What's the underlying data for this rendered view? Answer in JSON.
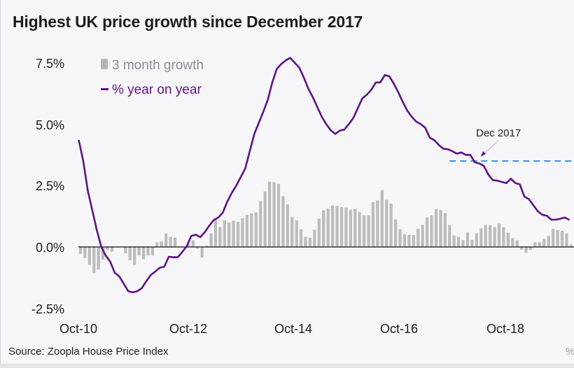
{
  "title": "Highest UK price growth since December 2017",
  "source": "Source: Zoopla House Price Index",
  "cut_off_text": "%",
  "colors": {
    "line": "#5e1283",
    "bars": "#bcbcbc",
    "reference": "#3a8fe3",
    "zero_line": "#333333"
  },
  "chart_data": {
    "type": "bar+line",
    "title": "Highest UK price growth since December 2017",
    "xlabel": "",
    "ylabel": "",
    "x_start": "Oct-10",
    "x_frequency": "monthly",
    "x_tick_labels": [
      "Oct-10",
      "Oct-12",
      "Oct-14",
      "Oct-16",
      "Oct-18"
    ],
    "y_tick_labels": [
      "7.5%",
      "5.0%",
      "2.5%",
      "0.0%",
      "-2.5%"
    ],
    "y_ticks": [
      7.5,
      5.0,
      2.5,
      0.0,
      -2.5
    ],
    "ylim": [
      -2.5,
      7.5
    ],
    "grid": false,
    "legend_position": "top-left",
    "series": [
      {
        "name": "3 month growth",
        "type": "bar",
        "values": [
          -0.28,
          -0.45,
          -0.73,
          -1.06,
          -0.92,
          -0.52,
          -0.13,
          -0.19,
          0,
          0,
          -0.26,
          -0.54,
          -0.73,
          -0.35,
          -0.5,
          -0.35,
          -0.35,
          0.19,
          0.22,
          0.55,
          0.41,
          0.38,
          0,
          0,
          0.12,
          0.27,
          -0.07,
          -0.43,
          0.05,
          0.55,
          1.12,
          0.82,
          1.09,
          1.0,
          1.07,
          1.03,
          1.17,
          1.31,
          1.36,
          1.41,
          1.86,
          2.26,
          2.66,
          2.64,
          2.57,
          2.07,
          1.74,
          1.22,
          1.09,
          0.72,
          0.41,
          0.38,
          0.7,
          1.15,
          1.5,
          1.57,
          1.69,
          1.67,
          1.62,
          1.6,
          1.52,
          1.55,
          1.42,
          1.29,
          1.29,
          1.82,
          1.9,
          2.31,
          1.92,
          1.76,
          1.12,
          0.72,
          0.52,
          0.49,
          0.49,
          0.74,
          0.9,
          1.2,
          1.29,
          1.54,
          1.5,
          1.38,
          0.9,
          0.47,
          0.41,
          0.28,
          0.6,
          0.29,
          0.55,
          0.76,
          0.9,
          0.88,
          0.81,
          0.96,
          0.81,
          0.58,
          0.36,
          0.27,
          -0.11,
          -0.24,
          -0.13,
          0.19,
          0.19,
          0.33,
          0.46,
          0.74,
          0.69,
          0.66,
          0.55,
          0.1
        ]
      },
      {
        "name": "% year on year",
        "type": "line",
        "values": [
          4.36,
          3.5,
          2.3,
          1.5,
          0.7,
          0.0,
          -0.35,
          -0.6,
          -1.05,
          -1.2,
          -1.5,
          -1.8,
          -1.85,
          -1.8,
          -1.68,
          -1.4,
          -1.14,
          -1.0,
          -0.85,
          -0.8,
          -0.4,
          -0.42,
          -0.42,
          -0.2,
          0.03,
          0.45,
          0.5,
          0.4,
          0.6,
          0.87,
          1.1,
          1.2,
          1.4,
          1.85,
          2.2,
          2.5,
          2.85,
          3.2,
          3.9,
          4.6,
          5.05,
          5.5,
          6.0,
          6.7,
          7.25,
          7.45,
          7.6,
          7.7,
          7.5,
          7.3,
          6.9,
          6.45,
          6.1,
          5.7,
          5.3,
          5.0,
          4.75,
          4.6,
          4.74,
          4.78,
          5.0,
          5.25,
          5.65,
          6.05,
          6.2,
          6.4,
          6.7,
          6.7,
          7.0,
          6.95,
          6.65,
          6.3,
          5.9,
          5.55,
          5.3,
          5.1,
          5.0,
          4.85,
          4.45,
          4.35,
          4.15,
          4.0,
          3.98,
          3.9,
          3.8,
          3.85,
          3.75,
          3.75,
          3.45,
          3.4,
          3.3,
          2.95,
          2.72,
          2.7,
          2.65,
          2.6,
          2.78,
          2.6,
          2.55,
          2.05,
          1.95,
          1.7,
          1.45,
          1.31,
          1.27,
          1.11,
          1.11,
          1.15,
          1.2,
          1.1
        ]
      }
    ],
    "reference_line": {
      "value": 3.5,
      "style": "dashed",
      "from": "Aug-17"
    },
    "annotations": [
      {
        "text": "Dec 2017",
        "arrow": true
      }
    ]
  }
}
